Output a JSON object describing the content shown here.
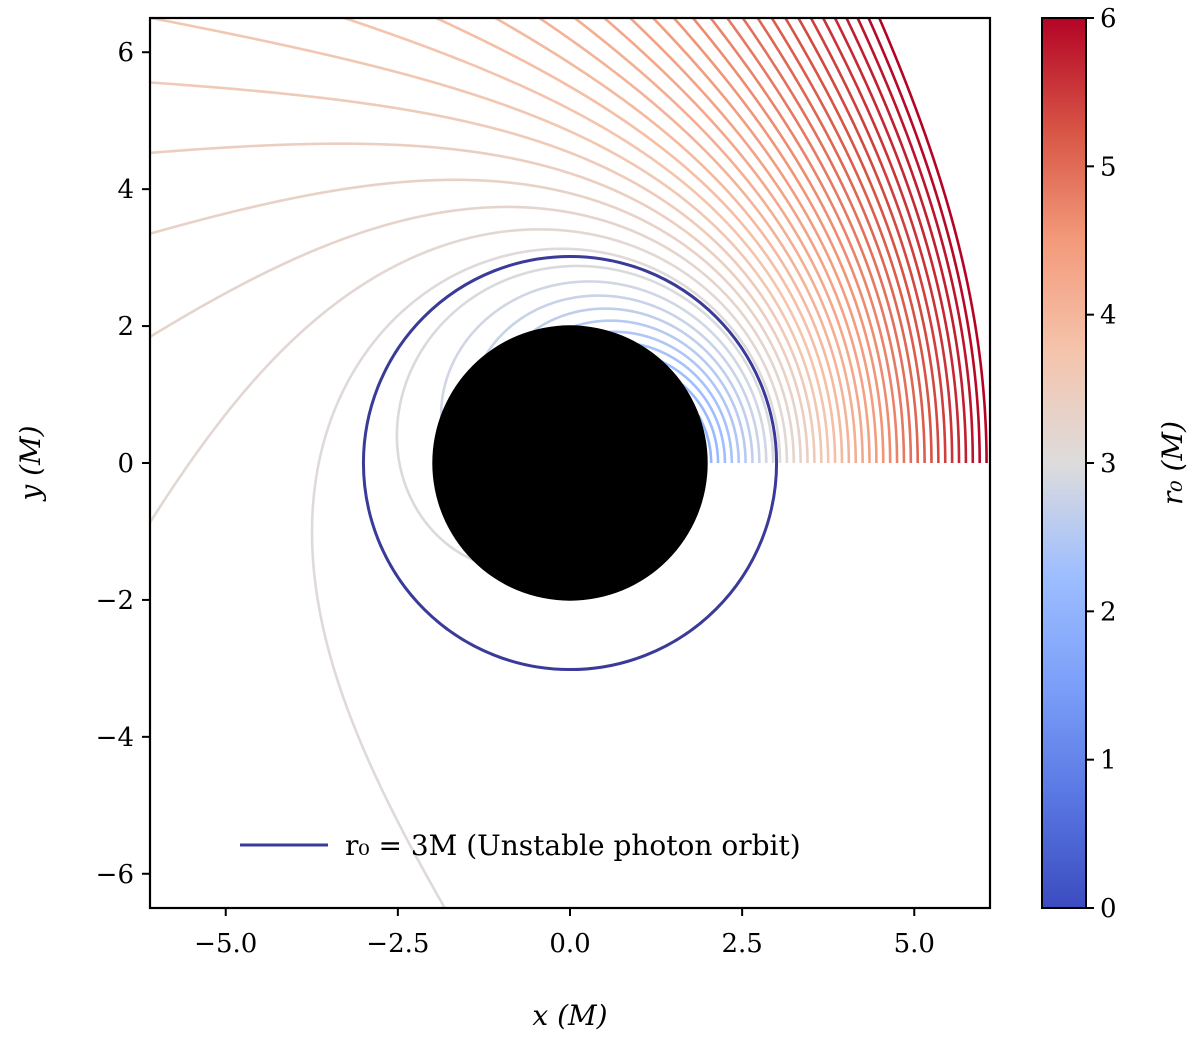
{
  "chart_data": {
    "type": "line",
    "title": "",
    "xlabel": "x (M)",
    "ylabel": "y (M)",
    "xlim": [
      -6.1,
      6.1
    ],
    "ylim": [
      -6.5,
      6.5
    ],
    "x_ticks": [
      -5.0,
      -2.5,
      0.0,
      2.5,
      5.0
    ],
    "x_tick_labels": [
      "−5.0",
      "−2.5",
      "0.0",
      "2.5",
      "5.0"
    ],
    "y_ticks": [
      -6,
      -4,
      -2,
      0,
      2,
      4,
      6
    ],
    "y_tick_labels": [
      "−6",
      "−4",
      "−2",
      "0",
      "2",
      "4",
      "6"
    ],
    "grid": false,
    "black_hole": {
      "center": [
        0,
        0
      ],
      "radius": 2.0,
      "color": "#000000"
    },
    "photon_orbit": {
      "radius": 3.0,
      "color": "#3a3a98",
      "label": "r₀ = 3M (Unstable photon orbit)"
    },
    "series": {
      "description": "Null geodesics emitted tangentially from the +x axis with starting radius r0 (in units of M), coloured by r0",
      "r0_start": 2.05,
      "r0_end": 6.0,
      "r0_step": 0.1,
      "colormap": "coolwarm",
      "colormap_range": [
        0,
        6
      ]
    },
    "legend": {
      "entries": [
        "r₀ = 3M (Unstable photon orbit)"
      ],
      "location": "lower-center"
    },
    "colorbar": {
      "label": "r₀ (M)",
      "range": [
        0,
        6
      ],
      "ticks": [
        0,
        1,
        2,
        3,
        4,
        5,
        6
      ],
      "tick_labels": [
        "0",
        "1",
        "2",
        "3",
        "4",
        "5",
        "6"
      ]
    }
  }
}
